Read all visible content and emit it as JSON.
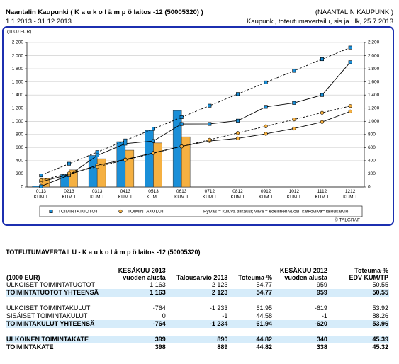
{
  "header": {
    "title": "Naantalin Kaupunki ( K a u k o l ä m p ö laitos -12 (50005320) )",
    "organization": "(NAANTALIN KAUPUNKI)",
    "period": "1.1.2013 - 31.12.2013",
    "report": "Kaupunki, toteutumavertailu, sis ja ulk, 25.7.2013"
  },
  "chart_data": {
    "type": "bar",
    "y_label": "(1000 EUR)",
    "categories": [
      "0113\nKUM T",
      "0213\nKUM T",
      "0313\nKUM T",
      "0413\nKUM T",
      "0513\nKUM T",
      "0613\nKUM T",
      "0712\nKUM T",
      "0812\nKUM T",
      "0912\nKUM T",
      "1012\nKUM T",
      "1112\nKUM T",
      "1212\nKUM T"
    ],
    "ylim": [
      0,
      2200
    ],
    "yticks": [
      0,
      200,
      400,
      600,
      800,
      {
        "value": 1000,
        "label": "1 000"
      },
      {
        "value": 1200,
        "label": "1 200"
      },
      {
        "value": 1400,
        "label": "1 400"
      },
      {
        "value": 1600,
        "label": "1 600"
      },
      {
        "value": 1800,
        "label": "1 800"
      },
      {
        "value": 2000,
        "label": "2 000"
      },
      {
        "value": 2200,
        "label": "2 200"
      }
    ],
    "grid": true,
    "series": [
      {
        "name": "TOIMINTATUOTOT",
        "color": "#1a8fd8",
        "marker": "square",
        "values": [
          15,
          190,
          480,
          690,
          860,
          1163,
          null,
          null,
          null,
          null,
          null,
          null
        ],
        "previous_year": [
          10,
          180,
          480,
          660,
          700,
          959,
          960,
          1010,
          1220,
          1280,
          1400,
          1900
        ],
        "budget": [
          177,
          354,
          531,
          708,
          885,
          1062,
          1238,
          1415,
          1592,
          1769,
          1946,
          2123
        ]
      },
      {
        "name": "TOIMINTAKULUT",
        "color": "#f5b041",
        "marker": "circle",
        "values": [
          130,
          260,
          430,
          560,
          670,
          764,
          null,
          null,
          null,
          null,
          null,
          null
        ],
        "previous_year": [
          80,
          190,
          330,
          420,
          520,
          620,
          700,
          740,
          810,
          890,
          990,
          1150
        ],
        "budget": [
          103,
          206,
          308,
          411,
          514,
          617,
          719,
          822,
          925,
          1028,
          1130,
          1233
        ]
      }
    ],
    "legend_note": "Pylväs = kuluva tilikausi; viiva = edellinen vuosi; katkoviiva=Talousarvio",
    "source": "© TALGRAF"
  },
  "table": {
    "title": "TOTEUTUMAVERTAILU - K a u k o l ä m p ö laitos -12 (50005320)",
    "columns": [
      "(1000 EUR)",
      "KESÄKUU 2013\nvuoden alusta",
      "Talousarvio 2013",
      "Toteuma-%",
      "KESÄKUU 2012\nvuoden alusta",
      "Toteuma-%\nEDV KUM/TP"
    ],
    "groups": [
      [
        {
          "cells": [
            "ULKOISET TOIMINTATUOTOT",
            "1 163",
            "2 123",
            "54.77",
            "959",
            "50.55"
          ],
          "bold": false,
          "shaded": false
        },
        {
          "cells": [
            "TOIMINTATUOTOT YHTEENSÄ",
            "1 163",
            "2 123",
            "54.77",
            "959",
            "50.55"
          ],
          "bold": true,
          "shaded": true
        }
      ],
      [
        {
          "cells": [
            "ULKOISET TOIMINTAKULUT",
            "-764",
            "-1 233",
            "61.95",
            "-619",
            "53.92"
          ],
          "bold": false,
          "shaded": false
        },
        {
          "cells": [
            "SISÄISET TOIMINTAKULUT",
            "0",
            "-1",
            "44.58",
            "-1",
            "88.26"
          ],
          "bold": false,
          "shaded": false
        },
        {
          "cells": [
            "TOIMINTAKULUT YHTEENSÄ",
            "-764",
            "-1 234",
            "61.94",
            "-620",
            "53.96"
          ],
          "bold": true,
          "shaded": true
        }
      ],
      [
        {
          "cells": [
            "ULKOINEN TOIMINTAKATE",
            "399",
            "890",
            "44.82",
            "340",
            "45.39"
          ],
          "bold": true,
          "shaded": true
        },
        {
          "cells": [
            "TOIMINTAKATE",
            "398",
            "889",
            "44.82",
            "338",
            "45.32"
          ],
          "bold": true,
          "shaded": false
        }
      ]
    ]
  }
}
